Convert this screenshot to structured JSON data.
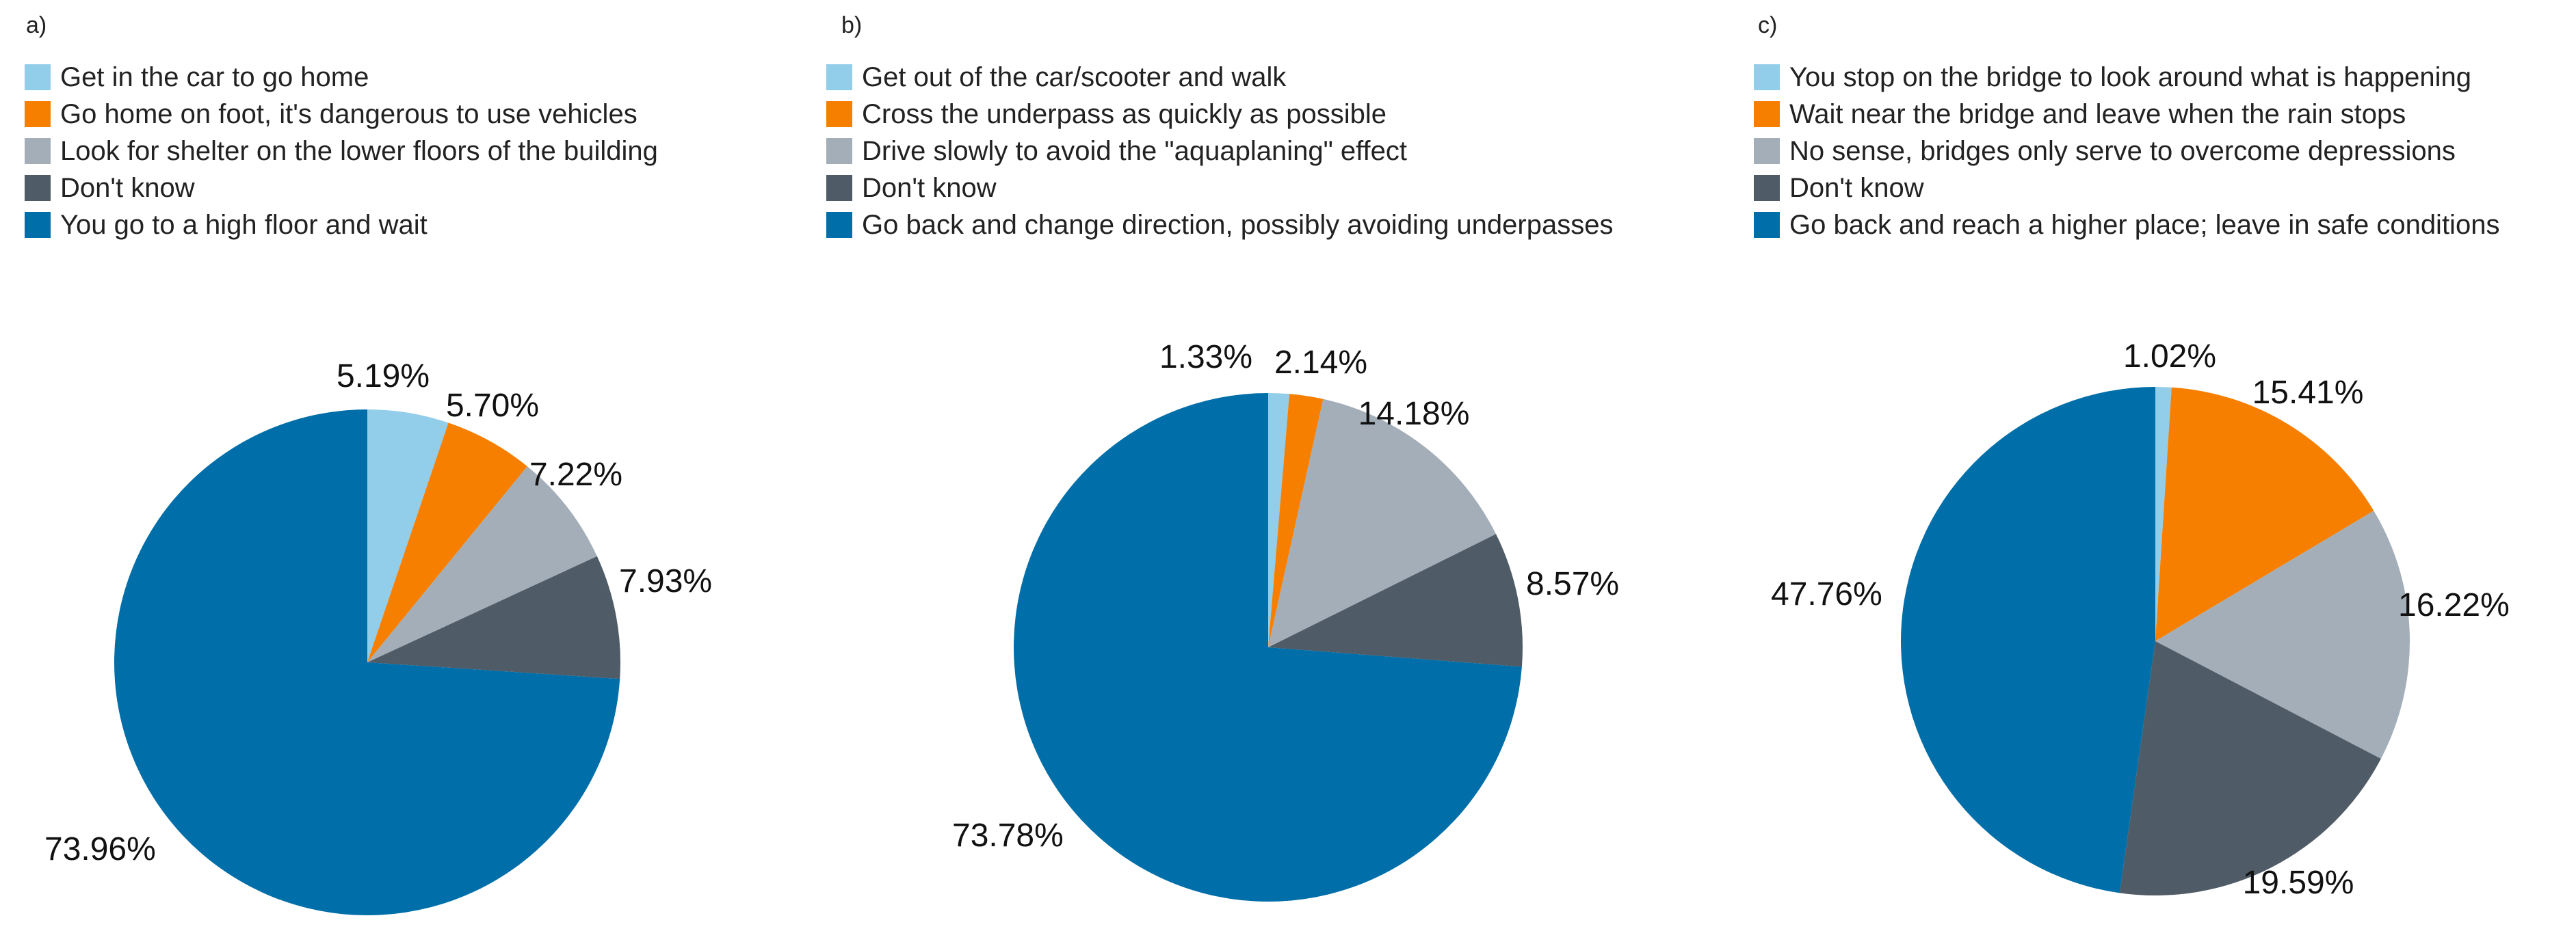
{
  "chart_data": [
    {
      "type": "pie",
      "panel_label": "a)",
      "categories": [
        "Get in the car to go home",
        "Go home on foot, it's dangerous to use vehicles",
        "Look for shelter on the lower floors of the building",
        "Don't know",
        "You go to a high floor and wait"
      ],
      "values": [
        5.19,
        5.7,
        7.22,
        7.93,
        73.96
      ],
      "value_labels": [
        "5.19%",
        "5.70%",
        "7.22%",
        "7.93%",
        "73.96%"
      ],
      "colors": [
        "#92cdea",
        "#f77f00",
        "#a3aeb9",
        "#4f5b66",
        "#006ea8"
      ],
      "legend_position": "top-left"
    },
    {
      "type": "pie",
      "panel_label": "b)",
      "categories": [
        "Get out of the car/scooter and walk",
        "Cross the underpass as quickly as possible",
        "Drive slowly to avoid the \"aquaplaning\" effect",
        "Don't know",
        "Go back and change direction, possibly avoiding underpasses"
      ],
      "values": [
        1.33,
        2.14,
        14.18,
        8.57,
        73.78
      ],
      "value_labels": [
        "1.33%",
        "2.14%",
        "14.18%",
        "8.57%",
        "73.78%"
      ],
      "colors": [
        "#92cdea",
        "#f77f00",
        "#a3aeb9",
        "#4f5b66",
        "#006ea8"
      ],
      "legend_position": "top-left"
    },
    {
      "type": "pie",
      "panel_label": "c)",
      "categories": [
        "You stop on the bridge to look around what is happening",
        "Wait near the bridge and leave when the rain stops",
        "No sense, bridges only serve to overcome depressions",
        "Don't know",
        "Go back and reach a higher place; leave in safe conditions"
      ],
      "values": [
        1.02,
        15.41,
        16.22,
        19.59,
        47.76
      ],
      "value_labels": [
        "1.02%",
        "15.41%",
        "16.22%",
        "19.59%",
        "47.76%"
      ],
      "colors": [
        "#92cdea",
        "#f77f00",
        "#a3aeb9",
        "#4f5b66",
        "#006ea8"
      ],
      "legend_position": "top-left"
    }
  ]
}
